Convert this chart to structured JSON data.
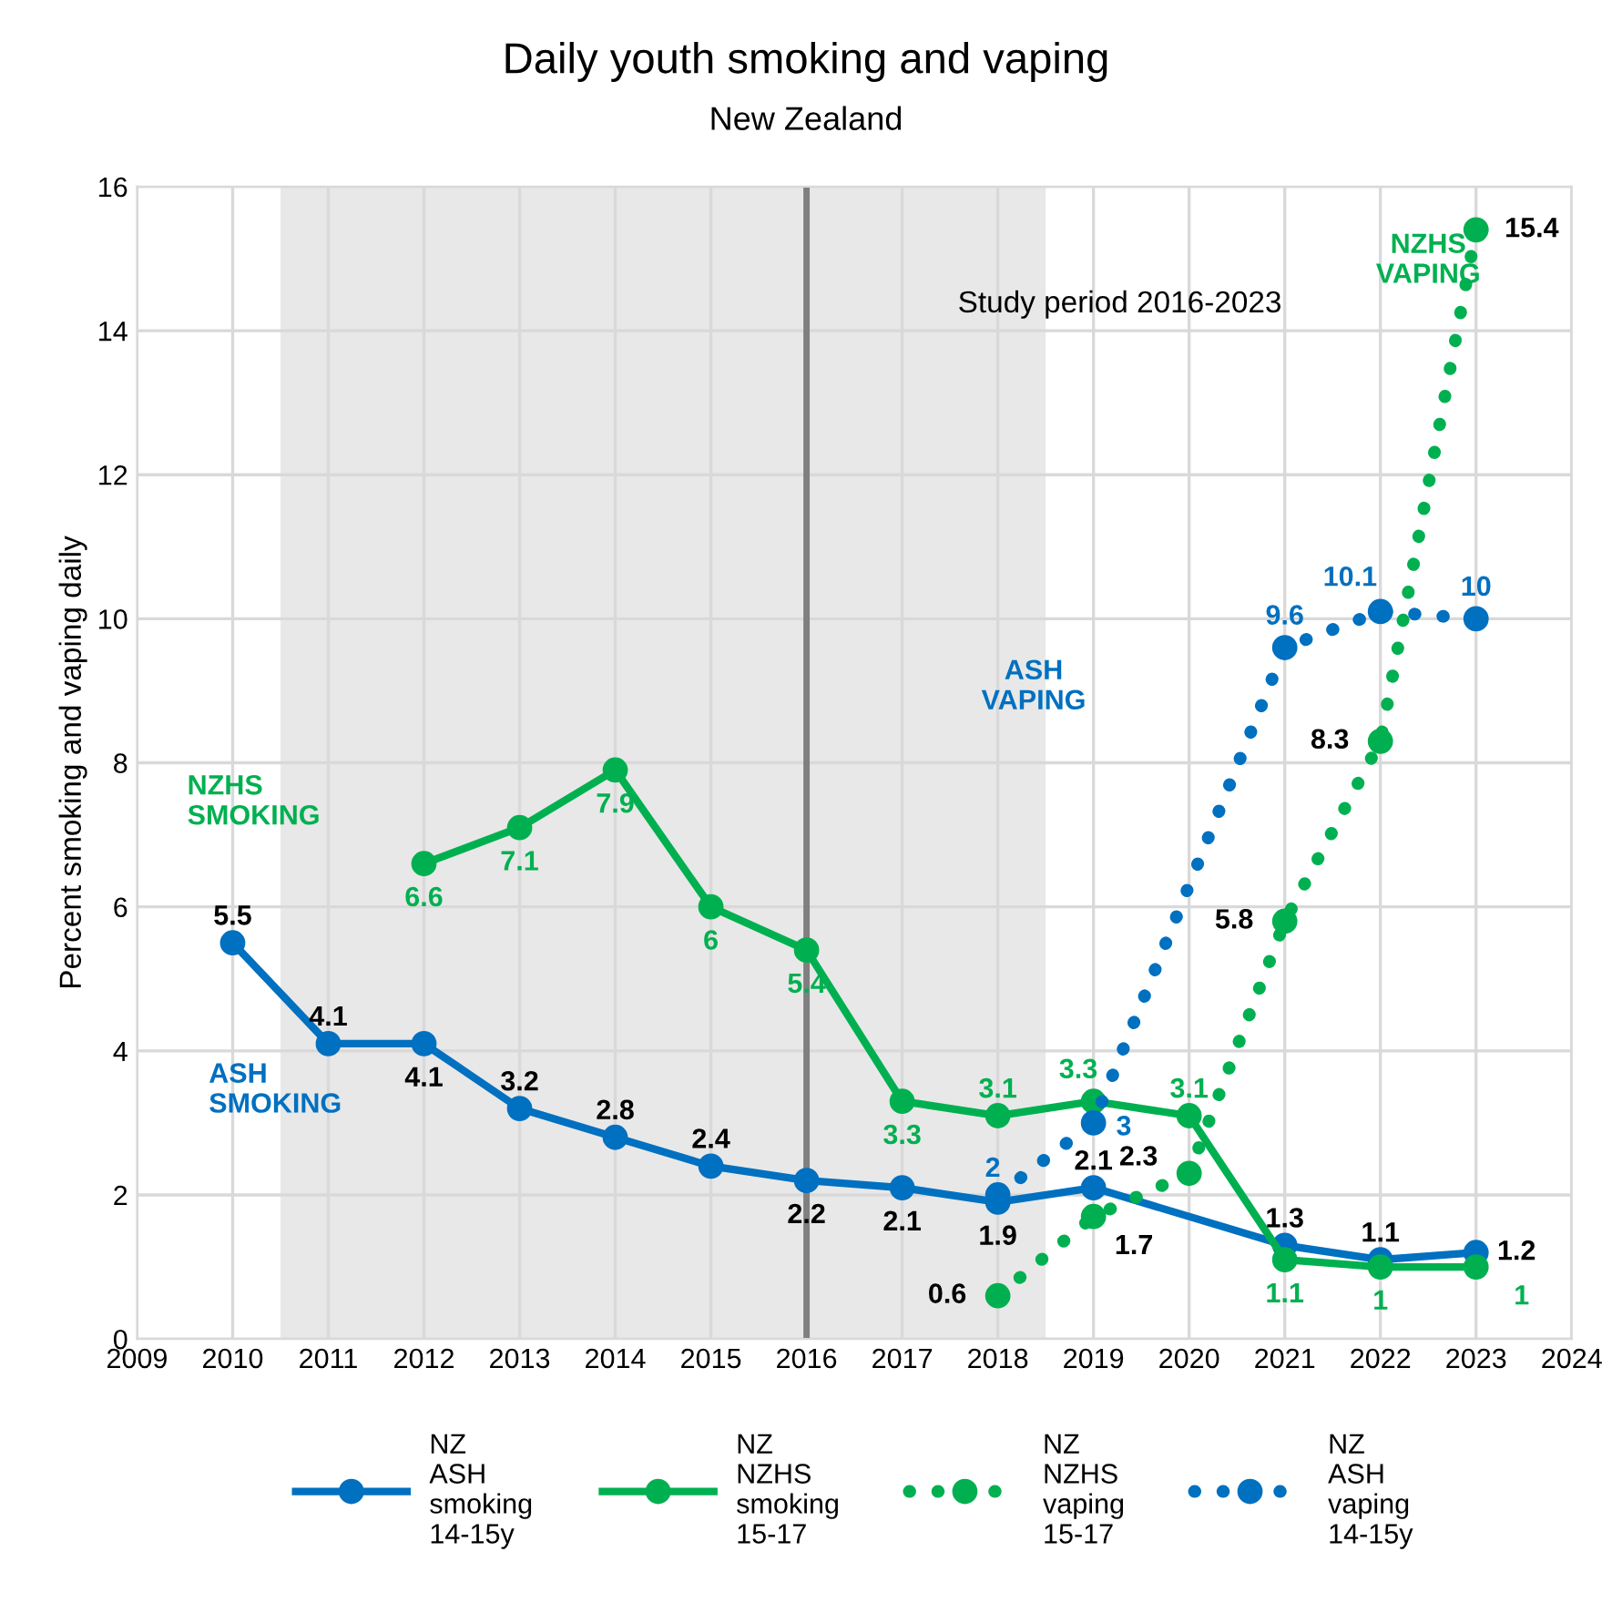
{
  "chart_data": {
    "type": "line",
    "title": "Daily youth smoking and vaping",
    "subtitle": "New Zealand",
    "ylabel": "Percent smoking and vaping daily",
    "x": [
      2010,
      2011,
      2012,
      2013,
      2014,
      2015,
      2016,
      2017,
      2018,
      2019,
      2020,
      2021,
      2022,
      2023
    ],
    "series": [
      {
        "name": "NZ\nASH\nsmoking\n14-15y",
        "color": "#0070c0",
        "line_style": "solid",
        "values": [
          5.5,
          4.1,
          4.1,
          3.2,
          2.8,
          2.4,
          2.2,
          2.1,
          1.9,
          2.1,
          null,
          1.3,
          1.1,
          1.2
        ],
        "value_labels": [
          "5.5",
          "4.1",
          "4.1",
          "3.2",
          "2.8",
          "2.4",
          "2.2",
          "2.1",
          "1.9",
          "2.1",
          null,
          "1.3",
          "1.1",
          "1.2"
        ]
      },
      {
        "name": "NZ\nNZHS\nsmoking\n15-17",
        "color": "#00b050",
        "line_style": "solid",
        "values": [
          null,
          null,
          6.6,
          7.1,
          7.9,
          6,
          5.4,
          3.3,
          3.1,
          3.3,
          3.1,
          1.1,
          1,
          1
        ],
        "value_labels": [
          null,
          null,
          "6.6",
          "7.1",
          "7.9",
          "6",
          "5.4",
          "3.3",
          "3.1",
          "3.3",
          "3.1",
          "1.1",
          "1",
          "1"
        ]
      },
      {
        "name": "NZ\nNZHS\nvaping\n15-17",
        "color": "#00b050",
        "line_style": "dotted",
        "values": [
          null,
          null,
          null,
          null,
          null,
          null,
          null,
          null,
          0.6,
          1.7,
          2.3,
          5.8,
          8.3,
          15.4
        ],
        "value_labels": [
          null,
          null,
          null,
          null,
          null,
          null,
          null,
          null,
          "0.6",
          "1.7",
          "2.3",
          "5.8",
          "8.3",
          "15.4"
        ]
      },
      {
        "name": "NZ\nASH\nvaping\n14-15y",
        "color": "#0070c0",
        "line_style": "dotted",
        "values": [
          null,
          null,
          null,
          null,
          null,
          null,
          null,
          null,
          2,
          3,
          null,
          9.6,
          10.1,
          10
        ],
        "value_labels": [
          null,
          null,
          null,
          null,
          null,
          null,
          null,
          null,
          "2",
          "3",
          null,
          "9.6",
          "10.1",
          "10"
        ]
      }
    ],
    "marker": "circle",
    "xlim": [
      2009,
      2024
    ],
    "xticks": [
      2009,
      2010,
      2011,
      2012,
      2013,
      2014,
      2015,
      2016,
      2017,
      2018,
      2019,
      2020,
      2021,
      2022,
      2023,
      2024
    ],
    "ylim": [
      0,
      16
    ],
    "yticks": [
      0,
      2,
      4,
      6,
      8,
      10,
      12,
      14,
      16
    ],
    "grid": true,
    "legend": "bottom",
    "bands": [
      {
        "axis": "x",
        "from": 2010.5,
        "to": 2018.5,
        "color": "#e8e8e8"
      }
    ],
    "ref_lines": [
      {
        "axis": "x",
        "value": 2016,
        "color": "#7f7f7f"
      }
    ],
    "annotations": [
      "Study period 2016-2023",
      "NZHS\nSMOKING",
      "ASH\nSMOKING",
      "ASH\nVAPING",
      "NZHS\nVAPING"
    ]
  }
}
